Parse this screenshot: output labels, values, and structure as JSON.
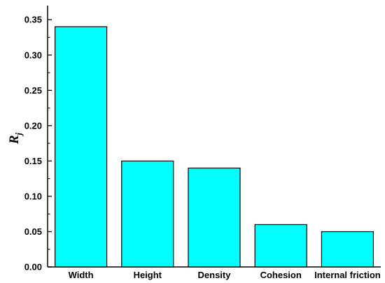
{
  "chart_data": {
    "type": "bar",
    "categories": [
      "Width",
      "Height",
      "Density",
      "Cohesion",
      "Internal friction"
    ],
    "values": [
      0.34,
      0.15,
      0.14,
      0.06,
      0.05
    ],
    "title": "",
    "xlabel": "",
    "ylabel": "R",
    "ylabel_subscript": "j",
    "ylim": [
      0,
      0.37
    ],
    "yticks": [
      0.0,
      0.05,
      0.1,
      0.15,
      0.2,
      0.25,
      0.3,
      0.35
    ],
    "ytick_labels": [
      "0.00",
      "0.05",
      "0.10",
      "0.15",
      "0.20",
      "0.25",
      "0.30",
      "0.35"
    ],
    "grid": false,
    "legend": "none",
    "bar_color": "#00FFFF",
    "bar_edge_color": "#000000"
  }
}
